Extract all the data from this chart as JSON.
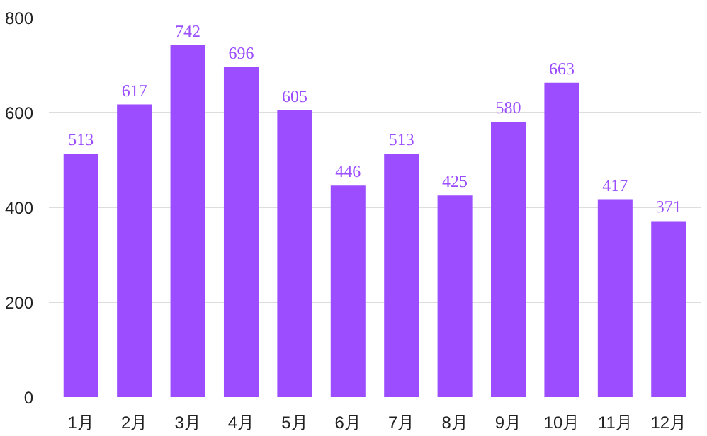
{
  "chart_data": {
    "type": "bar",
    "categories": [
      "1月",
      "2月",
      "3月",
      "4月",
      "5月",
      "6月",
      "7月",
      "8月",
      "9月",
      "10月",
      "11月",
      "12月"
    ],
    "values": [
      513,
      617,
      742,
      696,
      605,
      446,
      513,
      425,
      580,
      663,
      417,
      371
    ],
    "color": "#9b4dff",
    "ylim": [
      0,
      800
    ],
    "yticks": [
      0,
      200,
      400,
      600,
      800
    ],
    "grid": "y",
    "data_labels": true
  }
}
